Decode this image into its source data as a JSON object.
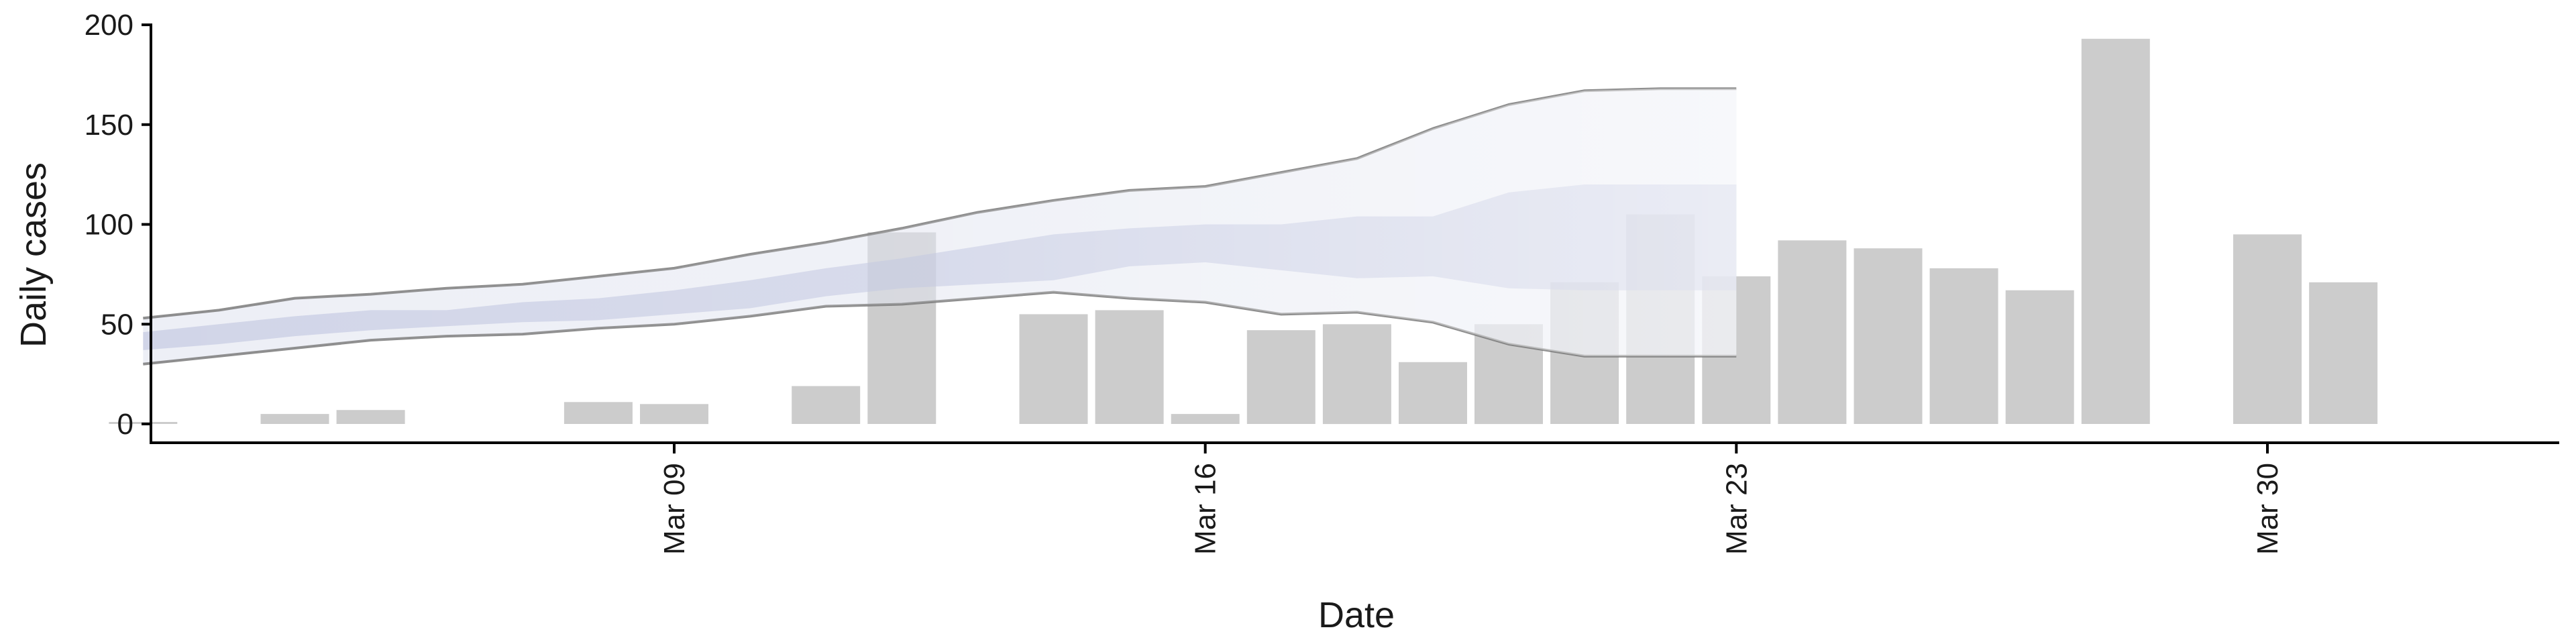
{
  "chart_data": {
    "type": "bar",
    "title": "",
    "xlabel": "Date",
    "ylabel": "Daily cases",
    "ylim": [
      0,
      200
    ],
    "yticks": [
      0,
      50,
      100,
      150,
      200
    ],
    "x_range": [
      "2020-03-01",
      "2020-04-02"
    ],
    "x_ticks": [
      {
        "date": "2020-03-09",
        "label": "Mar 09"
      },
      {
        "date": "2020-03-16",
        "label": "Mar 16"
      },
      {
        "date": "2020-03-23",
        "label": "Mar 23"
      },
      {
        "date": "2020-03-30",
        "label": "Mar 30"
      }
    ],
    "grid": false,
    "series": [
      {
        "type": "bar",
        "color": "#cccccc",
        "points": [
          {
            "date": "2020-03-02",
            "value": 1
          },
          {
            "date": "2020-03-04",
            "value": 5
          },
          {
            "date": "2020-03-05",
            "value": 7
          },
          {
            "date": "2020-03-08",
            "value": 11
          },
          {
            "date": "2020-03-09",
            "value": 10
          },
          {
            "date": "2020-03-11",
            "value": 19
          },
          {
            "date": "2020-03-12",
            "value": 96
          },
          {
            "date": "2020-03-14",
            "value": 55
          },
          {
            "date": "2020-03-15",
            "value": 57
          },
          {
            "date": "2020-03-16",
            "value": 5
          },
          {
            "date": "2020-03-17",
            "value": 47
          },
          {
            "date": "2020-03-18",
            "value": 50
          },
          {
            "date": "2020-03-19",
            "value": 31
          },
          {
            "date": "2020-03-20",
            "value": 50
          },
          {
            "date": "2020-03-21",
            "value": 71
          },
          {
            "date": "2020-03-22",
            "value": 105
          },
          {
            "date": "2020-03-23",
            "value": 74
          },
          {
            "date": "2020-03-24",
            "value": 92
          },
          {
            "date": "2020-03-25",
            "value": 88
          },
          {
            "date": "2020-03-26",
            "value": 78
          },
          {
            "date": "2020-03-27",
            "value": 67
          },
          {
            "date": "2020-03-28",
            "value": 193
          },
          {
            "date": "2020-03-30",
            "value": 95
          },
          {
            "date": "2020-03-31",
            "value": 71
          }
        ]
      },
      {
        "type": "band",
        "color": "#d8dbea",
        "dates": [
          "2020-03-02",
          "2020-03-03",
          "2020-03-04",
          "2020-03-05",
          "2020-03-06",
          "2020-03-07",
          "2020-03-08",
          "2020-03-09",
          "2020-03-10",
          "2020-03-11",
          "2020-03-12",
          "2020-03-13",
          "2020-03-14",
          "2020-03-15",
          "2020-03-16",
          "2020-03-17",
          "2020-03-18",
          "2020-03-19",
          "2020-03-20",
          "2020-03-21",
          "2020-03-22",
          "2020-03-23"
        ],
        "upper": [
          53,
          57,
          63,
          65,
          68,
          70,
          74,
          78,
          85,
          91,
          98,
          106,
          112,
          117,
          119,
          126,
          133,
          148,
          160,
          167,
          168,
          168
        ],
        "lower": [
          30,
          34,
          38,
          42,
          44,
          45,
          48,
          50,
          54,
          59,
          60,
          63,
          66,
          63,
          61,
          55,
          56,
          51,
          40,
          34,
          34,
          34
        ]
      },
      {
        "type": "band",
        "color": "#b9bfdc",
        "dates": [
          "2020-03-02",
          "2020-03-03",
          "2020-03-04",
          "2020-03-05",
          "2020-03-06",
          "2020-03-07",
          "2020-03-08",
          "2020-03-09",
          "2020-03-10",
          "2020-03-11",
          "2020-03-12",
          "2020-03-13",
          "2020-03-14",
          "2020-03-15",
          "2020-03-16",
          "2020-03-17",
          "2020-03-18",
          "2020-03-19",
          "2020-03-20",
          "2020-03-21",
          "2020-03-22",
          "2020-03-23"
        ],
        "upper": [
          46,
          50,
          54,
          57,
          57,
          61,
          63,
          67,
          72,
          78,
          83,
          89,
          95,
          98,
          100,
          100,
          104,
          104,
          116,
          120,
          120,
          120
        ],
        "lower": [
          37,
          40,
          44,
          47,
          49,
          51,
          52,
          55,
          58,
          64,
          68,
          70,
          72,
          79,
          81,
          77,
          73,
          74,
          68,
          67,
          67,
          67
        ]
      }
    ],
    "colors": {
      "bar": "#cccccc",
      "outer_band": "#d8dbea",
      "inner_band": "#b9bfdc",
      "band_edge": "#7a7a7a",
      "axis": "#000000"
    }
  }
}
